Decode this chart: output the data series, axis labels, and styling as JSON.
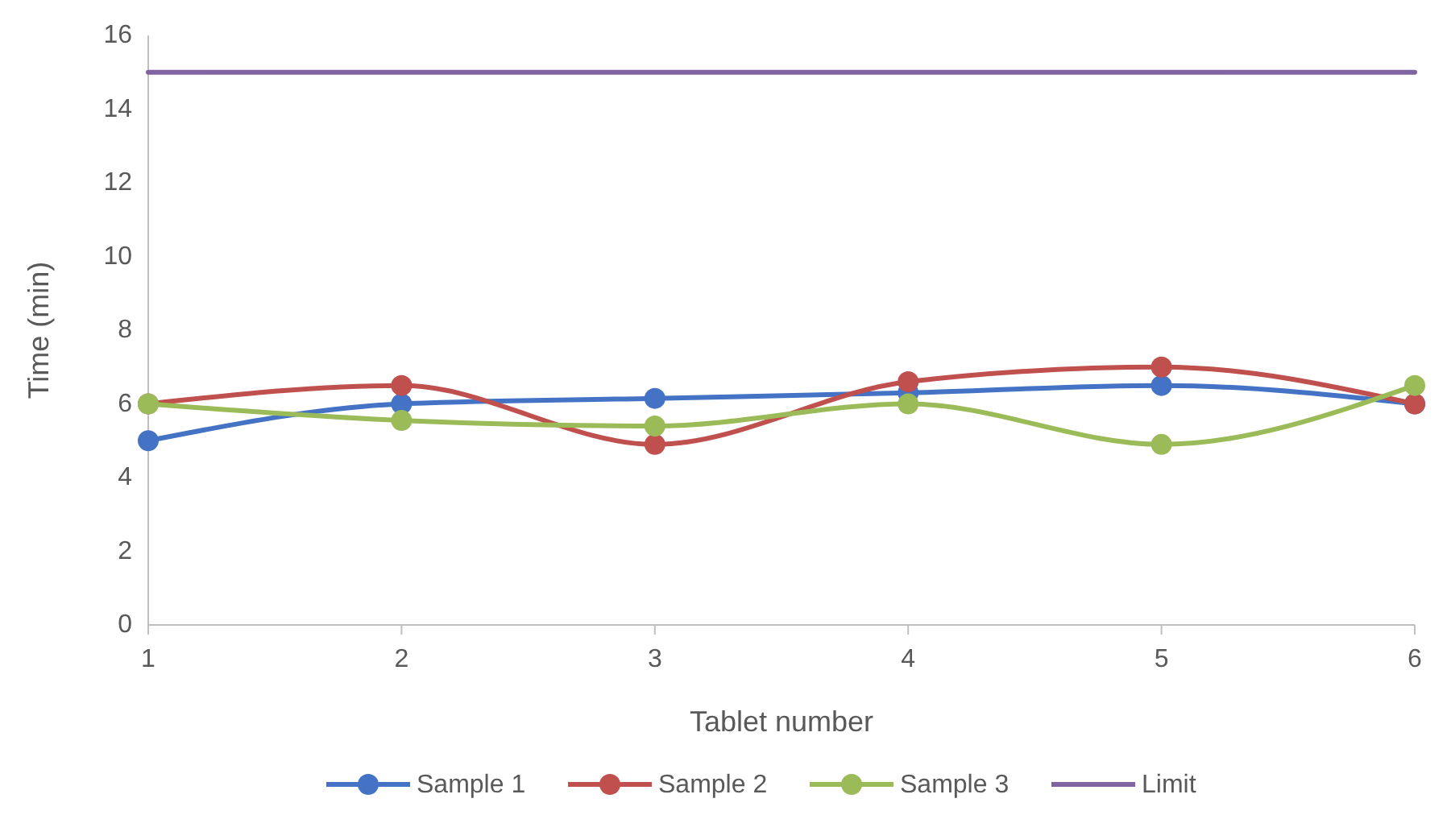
{
  "chart_data": {
    "type": "line",
    "xlabel": "Tablet number",
    "ylabel": "Time (min)",
    "x": [
      1,
      2,
      3,
      4,
      5,
      6
    ],
    "xlim": [
      1,
      6
    ],
    "xticks": [
      1,
      2,
      3,
      4,
      5,
      6
    ],
    "ylim": [
      0,
      16
    ],
    "yticks": [
      0,
      2,
      4,
      6,
      8,
      10,
      12,
      14,
      16
    ],
    "grid": false,
    "legend": "bottom",
    "marker": "circle",
    "line_style": "solid",
    "series": [
      {
        "name": "Sample 1",
        "color": "#4472c4",
        "values": [
          5,
          6,
          6.15,
          6.3,
          6.5,
          6
        ]
      },
      {
        "name": "Sample 2",
        "color": "#c0504d",
        "values": [
          6,
          6.5,
          4.9,
          6.6,
          7,
          6
        ]
      },
      {
        "name": "Sample 3",
        "color": "#9bbb59",
        "values": [
          6,
          5.55,
          5.4,
          6,
          4.9,
          6.5
        ]
      },
      {
        "name": "Limit",
        "color": "#8064a2",
        "marker": "none",
        "values": [
          15,
          15,
          15,
          15,
          15,
          15
        ]
      }
    ]
  }
}
